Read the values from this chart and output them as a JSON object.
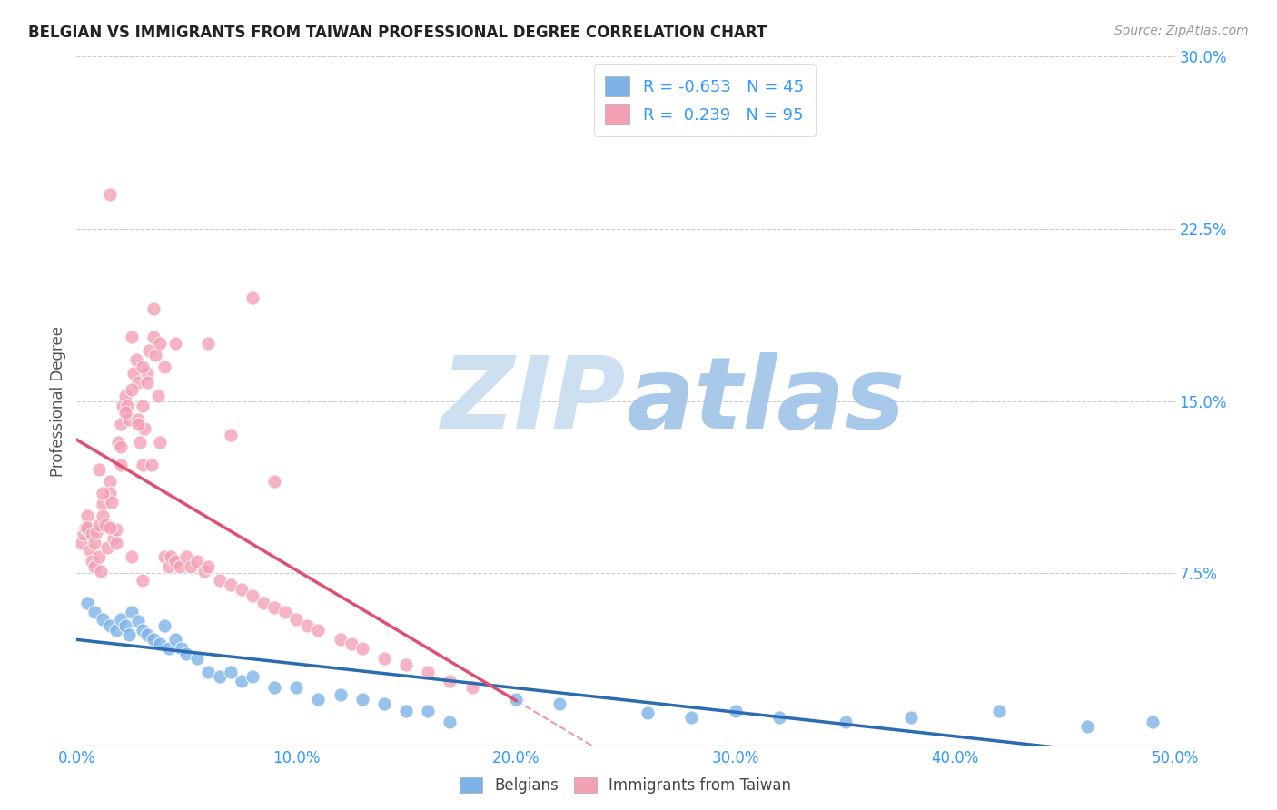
{
  "title": "BELGIAN VS IMMIGRANTS FROM TAIWAN PROFESSIONAL DEGREE CORRELATION CHART",
  "source": "Source: ZipAtlas.com",
  "ylabel": "Professional Degree",
  "xlim": [
    0.0,
    0.5
  ],
  "ylim": [
    0.0,
    0.3
  ],
  "xticks": [
    0.0,
    0.1,
    0.2,
    0.3,
    0.4,
    0.5
  ],
  "yticks": [
    0.0,
    0.075,
    0.15,
    0.225,
    0.3
  ],
  "xtick_labels": [
    "0.0%",
    "10.0%",
    "20.0%",
    "30.0%",
    "40.0%",
    "50.0%"
  ],
  "ytick_labels": [
    "",
    "7.5%",
    "15.0%",
    "22.5%",
    "30.0%"
  ],
  "blue_R": -0.653,
  "blue_N": 45,
  "pink_R": 0.239,
  "pink_N": 95,
  "blue_scatter_color": "#7db3e8",
  "pink_scatter_color": "#f4a0b5",
  "blue_line_color": "#2b6cb0",
  "pink_line_color": "#e05070",
  "dashed_line_color": "#e07090",
  "grid_color": "#cccccc",
  "title_color": "#222222",
  "tick_label_color": "#3399ff",
  "legend_text_color": "#3399ff",
  "watermark_ZIP_color": "#c8ddf0",
  "watermark_atlas_color": "#a0c4e8",
  "background_color": "#ffffff",
  "blue_scatter_x": [
    0.005,
    0.008,
    0.012,
    0.015,
    0.018,
    0.02,
    0.022,
    0.024,
    0.025,
    0.028,
    0.03,
    0.032,
    0.035,
    0.038,
    0.04,
    0.042,
    0.045,
    0.048,
    0.05,
    0.055,
    0.06,
    0.065,
    0.07,
    0.075,
    0.08,
    0.09,
    0.1,
    0.11,
    0.12,
    0.13,
    0.14,
    0.15,
    0.16,
    0.17,
    0.2,
    0.22,
    0.26,
    0.28,
    0.3,
    0.32,
    0.35,
    0.38,
    0.42,
    0.46,
    0.49
  ],
  "blue_scatter_y": [
    0.062,
    0.058,
    0.055,
    0.052,
    0.05,
    0.055,
    0.052,
    0.048,
    0.058,
    0.054,
    0.05,
    0.048,
    0.046,
    0.044,
    0.052,
    0.042,
    0.046,
    0.042,
    0.04,
    0.038,
    0.032,
    0.03,
    0.032,
    0.028,
    0.03,
    0.025,
    0.025,
    0.02,
    0.022,
    0.02,
    0.018,
    0.015,
    0.015,
    0.01,
    0.02,
    0.018,
    0.014,
    0.012,
    0.015,
    0.012,
    0.01,
    0.012,
    0.015,
    0.008,
    0.01
  ],
  "pink_scatter_x": [
    0.002,
    0.003,
    0.004,
    0.005,
    0.005,
    0.006,
    0.007,
    0.007,
    0.008,
    0.008,
    0.009,
    0.01,
    0.01,
    0.011,
    0.012,
    0.012,
    0.013,
    0.014,
    0.015,
    0.015,
    0.016,
    0.017,
    0.018,
    0.019,
    0.02,
    0.02,
    0.021,
    0.022,
    0.023,
    0.024,
    0.025,
    0.025,
    0.026,
    0.027,
    0.028,
    0.028,
    0.029,
    0.03,
    0.03,
    0.031,
    0.032,
    0.033,
    0.034,
    0.035,
    0.036,
    0.037,
    0.038,
    0.04,
    0.042,
    0.043,
    0.045,
    0.047,
    0.05,
    0.052,
    0.055,
    0.058,
    0.06,
    0.065,
    0.07,
    0.075,
    0.08,
    0.085,
    0.09,
    0.095,
    0.1,
    0.105,
    0.11,
    0.12,
    0.125,
    0.13,
    0.14,
    0.15,
    0.16,
    0.17,
    0.18,
    0.01,
    0.012,
    0.015,
    0.018,
    0.02,
    0.022,
    0.025,
    0.028,
    0.03,
    0.032,
    0.035,
    0.038,
    0.04,
    0.015,
    0.08,
    0.06,
    0.07,
    0.03,
    0.09,
    0.045
  ],
  "pink_scatter_y": [
    0.088,
    0.092,
    0.095,
    0.1,
    0.095,
    0.085,
    0.08,
    0.092,
    0.078,
    0.088,
    0.093,
    0.082,
    0.096,
    0.076,
    0.105,
    0.1,
    0.096,
    0.086,
    0.115,
    0.11,
    0.106,
    0.09,
    0.094,
    0.132,
    0.122,
    0.14,
    0.148,
    0.152,
    0.148,
    0.142,
    0.082,
    0.178,
    0.162,
    0.168,
    0.142,
    0.158,
    0.132,
    0.122,
    0.148,
    0.138,
    0.162,
    0.172,
    0.122,
    0.178,
    0.17,
    0.152,
    0.132,
    0.082,
    0.078,
    0.082,
    0.08,
    0.078,
    0.082,
    0.078,
    0.08,
    0.076,
    0.078,
    0.072,
    0.07,
    0.068,
    0.065,
    0.062,
    0.06,
    0.058,
    0.055,
    0.052,
    0.05,
    0.046,
    0.044,
    0.042,
    0.038,
    0.035,
    0.032,
    0.028,
    0.025,
    0.12,
    0.11,
    0.095,
    0.088,
    0.13,
    0.145,
    0.155,
    0.14,
    0.165,
    0.158,
    0.19,
    0.175,
    0.165,
    0.24,
    0.195,
    0.175,
    0.135,
    0.072,
    0.115,
    0.175
  ]
}
